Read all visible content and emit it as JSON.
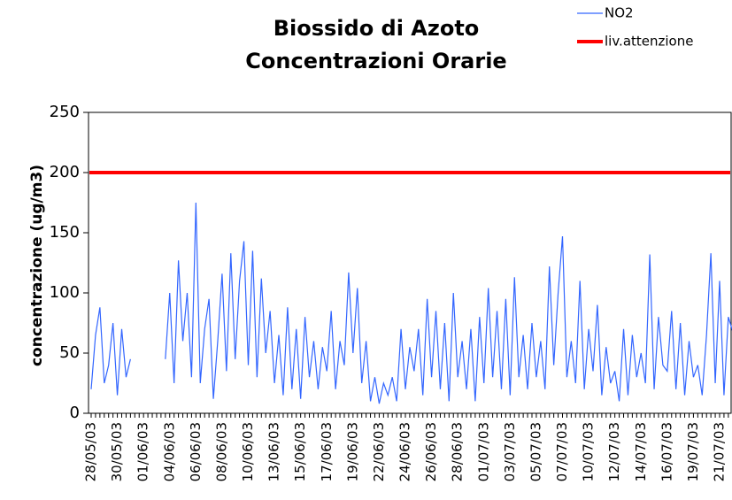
{
  "chart_data": {
    "type": "line",
    "title": [
      "Biossido di Azoto",
      "Concentrazioni Orarie"
    ],
    "y_label": "concentrazione (ug/m3)",
    "categories": [
      "28/05/03",
      null,
      null,
      null,
      null,
      null,
      "30/05/03",
      null,
      null,
      null,
      null,
      null,
      "01/06/03",
      null,
      null,
      null,
      null,
      null,
      "04/06/03",
      null,
      null,
      null,
      null,
      null,
      "06/06/03",
      null,
      null,
      null,
      null,
      null,
      "08/06/03",
      null,
      null,
      null,
      null,
      null,
      "10/06/03",
      null,
      null,
      null,
      null,
      null,
      "13/06/03",
      null,
      null,
      null,
      null,
      null,
      "15/06/03",
      null,
      null,
      null,
      null,
      null,
      "17/06/03",
      null,
      null,
      null,
      null,
      null,
      "19/06/03",
      null,
      null,
      null,
      null,
      null,
      "22/06/03",
      null,
      null,
      null,
      null,
      null,
      "24/06/03",
      null,
      null,
      null,
      null,
      null,
      "26/06/03",
      null,
      null,
      null,
      null,
      null,
      "28/06/03",
      null,
      null,
      null,
      null,
      null,
      "01/07/03",
      null,
      null,
      null,
      null,
      null,
      "03/07/03",
      null,
      null,
      null,
      null,
      null,
      "05/07/03",
      null,
      null,
      null,
      null,
      null,
      "07/07/03",
      null,
      null,
      null,
      null,
      null,
      "10/07/03",
      null,
      null,
      null,
      null,
      null,
      "12/07/03",
      null,
      null,
      null,
      null,
      null,
      "14/07/03",
      null,
      null,
      null,
      null,
      null,
      "16/07/03",
      null,
      null,
      null,
      null,
      null,
      "19/07/03",
      null,
      null,
      null,
      null,
      null,
      "21/07/03",
      null,
      null,
      null
    ],
    "series": [
      {
        "name": "NO2",
        "color": "#3366ff",
        "width": 1.2,
        "values": [
          20,
          65,
          88,
          25,
          40,
          75,
          15,
          70,
          30,
          45,
          null,
          null,
          null,
          null,
          null,
          null,
          null,
          45,
          100,
          25,
          127,
          60,
          100,
          30,
          175,
          25,
          70,
          95,
          12,
          60,
          116,
          35,
          133,
          45,
          110,
          143,
          40,
          135,
          30,
          112,
          50,
          85,
          25,
          65,
          15,
          88,
          20,
          70,
          12,
          80,
          30,
          60,
          20,
          55,
          35,
          85,
          20,
          60,
          40,
          117,
          50,
          104,
          25,
          60,
          10,
          30,
          8,
          25,
          15,
          30,
          10,
          70,
          20,
          55,
          35,
          70,
          15,
          95,
          30,
          85,
          20,
          75,
          10,
          100,
          30,
          60,
          20,
          70,
          10,
          80,
          25,
          104,
          30,
          85,
          20,
          95,
          15,
          113,
          30,
          65,
          20,
          75,
          30,
          60,
          20,
          122,
          40,
          100,
          147,
          30,
          60,
          25,
          110,
          20,
          70,
          35,
          90,
          15,
          55,
          25,
          35,
          10,
          70,
          15,
          65,
          30,
          50,
          25,
          132,
          20,
          80,
          40,
          35,
          85,
          20,
          75,
          15,
          60,
          30,
          40,
          15,
          65,
          133,
          25,
          110,
          15,
          80,
          68
        ]
      },
      {
        "name": "liv.attenzione",
        "color": "#ff0000",
        "width": 4,
        "values": [
          200,
          200,
          200,
          200,
          200,
          200,
          200,
          200,
          200,
          200,
          200,
          200,
          200,
          200,
          200,
          200,
          200,
          200,
          200,
          200,
          200,
          200,
          200,
          200,
          200,
          200,
          200,
          200,
          200,
          200,
          200,
          200,
          200,
          200,
          200,
          200,
          200,
          200,
          200,
          200,
          200,
          200,
          200,
          200,
          200,
          200,
          200,
          200,
          200,
          200,
          200,
          200,
          200,
          200,
          200,
          200,
          200,
          200,
          200,
          200,
          200,
          200,
          200,
          200,
          200,
          200,
          200,
          200,
          200,
          200,
          200,
          200,
          200,
          200,
          200,
          200,
          200,
          200,
          200,
          200,
          200,
          200,
          200,
          200,
          200,
          200,
          200,
          200,
          200,
          200,
          200,
          200,
          200,
          200,
          200,
          200,
          200,
          200,
          200,
          200,
          200,
          200,
          200,
          200,
          200,
          200,
          200,
          200,
          200,
          200,
          200,
          200,
          200,
          200,
          200,
          200,
          200,
          200,
          200,
          200,
          200,
          200,
          200,
          200,
          200,
          200,
          200,
          200,
          200,
          200,
          200,
          200,
          200,
          200,
          200,
          200,
          200,
          200,
          200,
          200,
          200,
          200,
          200,
          200,
          200,
          200,
          200,
          200
        ]
      }
    ],
    "ylim": [
      0,
      250
    ],
    "yticks": [
      0,
      50,
      100,
      150,
      200,
      250
    ]
  }
}
